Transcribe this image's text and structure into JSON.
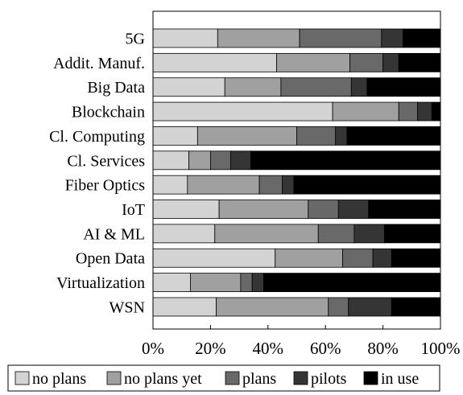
{
  "chart_data": {
    "type": "bar",
    "orientation": "horizontal",
    "stacked": true,
    "categories": [
      "5G",
      "Addit. Manuf.",
      "Big Data",
      "Blockchain",
      "Cl. Computing",
      "Cl. Services",
      "Fiber Optics",
      "IoT",
      "AI & ML",
      "Open Data",
      "Virtualization",
      "WSN"
    ],
    "series": [
      {
        "name": "no plans",
        "color": "#d3d3d3",
        "values": [
          22.5,
          43,
          25,
          62.5,
          15.5,
          12.5,
          12,
          23,
          21.5,
          42.5,
          13,
          22
        ]
      },
      {
        "name": "no plans yet",
        "color": "#a0a0a0",
        "values": [
          28.5,
          25.5,
          19.5,
          23,
          34.5,
          7.5,
          25,
          31,
          36,
          23.5,
          17.5,
          39
        ]
      },
      {
        "name": "plans",
        "color": "#696969",
        "values": [
          28.5,
          11.5,
          24.5,
          6.5,
          13.5,
          7,
          8,
          10.5,
          12.5,
          10.5,
          4,
          7
        ]
      },
      {
        "name": "pilots",
        "color": "#353535",
        "values": [
          7.5,
          5.5,
          5.5,
          5,
          4,
          7,
          4,
          10.5,
          10.5,
          6.5,
          4,
          15
        ]
      },
      {
        "name": "in use",
        "color": "#000000",
        "values": [
          13,
          14.5,
          25.5,
          3,
          32.5,
          66,
          51,
          25,
          19.5,
          17,
          61.5,
          17
        ]
      }
    ],
    "xlim": [
      0,
      100
    ],
    "xticks": [
      "0%",
      "20%",
      "40%",
      "60%",
      "80%",
      "100%"
    ],
    "grid": false,
    "legend_position": "bottom"
  }
}
